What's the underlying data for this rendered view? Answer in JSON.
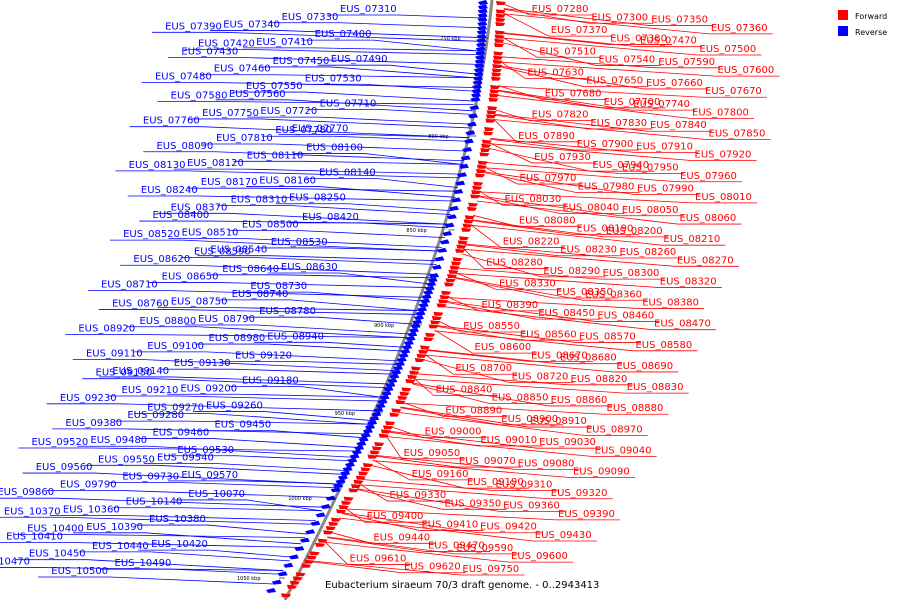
{
  "caption": "Eubacterium siraeum 70/3 draft genome. - 0..2943413",
  "legend": [
    {
      "label": "Forward",
      "color": "#ff0000"
    },
    {
      "label": "Reverse",
      "color": "#0000ff"
    }
  ],
  "colors": {
    "forward": "#ff0000",
    "reverse": "#0000ff",
    "backbone": "#888888"
  },
  "ticks": [
    "750 kbp",
    "800 kbp",
    "850 kbp",
    "900 kbp",
    "950 kbp",
    "1000 kbp",
    "1050 kbp"
  ],
  "reverse_genes": [
    "EUS_07310",
    "EUS_07330",
    "EUS_07340",
    "EUS_07390",
    "EUS_07400",
    "EUS_07410",
    "EUS_07420",
    "EUS_07430",
    "EUS_07490",
    "EUS_07450",
    "EUS_07460",
    "EUS_07480",
    "EUS_07530",
    "EUS_07550",
    "EUS_07560",
    "EUS_07580",
    "EUS_07710",
    "EUS_07720",
    "EUS_07750",
    "EUS_07760",
    "EUS_07770",
    "EUS_07780",
    "EUS_07810",
    "EUS_08090",
    "EUS_08100",
    "EUS_08110",
    "EUS_08120",
    "EUS_08130",
    "EUS_08140",
    "EUS_08160",
    "EUS_08170",
    "EUS_08240",
    "EUS_08250",
    "EUS_08310",
    "EUS_08370",
    "EUS_08400",
    "EUS_08420",
    "EUS_08500",
    "EUS_08510",
    "EUS_08520",
    "EUS_08530",
    "EUS_08540",
    "EUS_08590",
    "EUS_08620",
    "EUS_08630",
    "EUS_08640",
    "EUS_08650",
    "EUS_08710",
    "EUS_08730",
    "EUS_08740",
    "EUS_08750",
    "EUS_08760",
    "EUS_08780",
    "EUS_08790",
    "EUS_08800",
    "EUS_08920",
    "EUS_08940",
    "EUS_08980",
    "EUS_09100",
    "EUS_09110",
    "EUS_09120",
    "EUS_09130",
    "EUS_09140",
    "EUS_09150",
    "EUS_09180",
    "EUS_09200",
    "EUS_09210",
    "EUS_09230",
    "EUS_09260",
    "EUS_09270",
    "EUS_09280",
    "EUS_09380",
    "EUS_09450",
    "EUS_09460",
    "EUS_09480",
    "EUS_09520",
    "EUS_09530",
    "EUS_09540",
    "EUS_09550",
    "EUS_09560",
    "EUS_09570",
    "EUS_09730",
    "EUS_09790",
    "EUS_09860",
    "EUS_10070",
    "EUS_10140",
    "EUS_10360",
    "EUS_10370",
    "EUS_10380",
    "EUS_10390",
    "EUS_10400",
    "EUS_10410",
    "EUS_10420",
    "EUS_10440",
    "EUS_10450",
    "EUS_10470",
    "EUS_10490",
    "EUS_10500"
  ],
  "forward_genes": [
    "EUS_07280",
    "EUS_07300",
    "EUS_07350",
    "EUS_07360",
    "EUS_07370",
    "EUS_07380",
    "EUS_07470",
    "EUS_07500",
    "EUS_07510",
    "EUS_07540",
    "EUS_07590",
    "EUS_07600",
    "EUS_07630",
    "EUS_07650",
    "EUS_07660",
    "EUS_07670",
    "EUS_07680",
    "EUS_07700",
    "EUS_07740",
    "EUS_07800",
    "EUS_07820",
    "EUS_07830",
    "EUS_07840",
    "EUS_07850",
    "EUS_07890",
    "EUS_07900",
    "EUS_07910",
    "EUS_07920",
    "EUS_07930",
    "EUS_07940",
    "EUS_07950",
    "EUS_07960",
    "EUS_07970",
    "EUS_07980",
    "EUS_07990",
    "EUS_08010",
    "EUS_08030",
    "EUS_08040",
    "EUS_08050",
    "EUS_08060",
    "EUS_08080",
    "EUS_08190",
    "EUS_08200",
    "EUS_08210",
    "EUS_08220",
    "EUS_08230",
    "EUS_08260",
    "EUS_08270",
    "EUS_08280",
    "EUS_08290",
    "EUS_08300",
    "EUS_08320",
    "EUS_08330",
    "EUS_08350",
    "EUS_08360",
    "EUS_08380",
    "EUS_08390",
    "EUS_08450",
    "EUS_08460",
    "EUS_08470",
    "EUS_08550",
    "EUS_08560",
    "EUS_08570",
    "EUS_08580",
    "EUS_08600",
    "EUS_08670",
    "EUS_08680",
    "EUS_08690",
    "EUS_08700",
    "EUS_08720",
    "EUS_08820",
    "EUS_08830",
    "EUS_08840",
    "EUS_08850",
    "EUS_08860",
    "EUS_08880",
    "EUS_08890",
    "EUS_08900",
    "EUS_08910",
    "EUS_08970",
    "EUS_09000",
    "EUS_09010",
    "EUS_09030",
    "EUS_09040",
    "EUS_09050",
    "EUS_09070",
    "EUS_09080",
    "EUS_09090",
    "EUS_09160",
    "EUS_09190",
    "EUS_09310",
    "EUS_09320",
    "EUS_09330",
    "EUS_09350",
    "EUS_09360",
    "EUS_09390",
    "EUS_09400",
    "EUS_09410",
    "EUS_09420",
    "EUS_09430",
    "EUS_09440",
    "EUS_09470",
    "EUS_09590",
    "EUS_09600",
    "EUS_09610",
    "EUS_09620",
    "EUS_09750"
  ]
}
